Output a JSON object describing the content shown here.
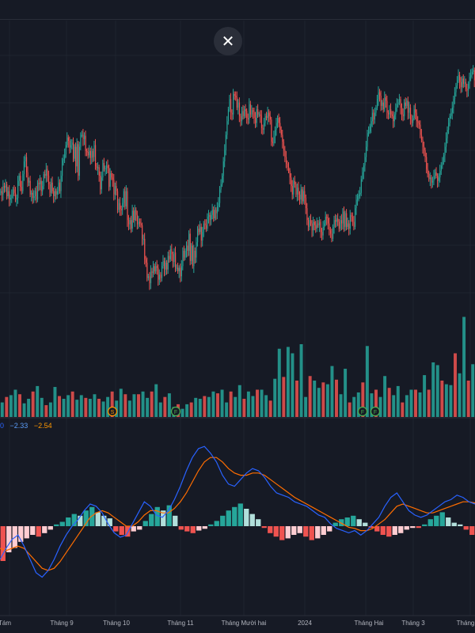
{
  "close_label": "✕",
  "macd_legend": {
    "hist": "0",
    "macd": "−2.33",
    "signal": "−2.54"
  },
  "colors": {
    "up": "#26a69a",
    "down": "#ef5350",
    "up_light": "#b2dfdb",
    "down_light": "#ffcdd2",
    "macd": "#2962ff",
    "signal": "#ff6d00",
    "grid": "#1f2430",
    "axis_text": "#b2b5be"
  },
  "chart_data": {
    "type": "candlestick",
    "x_tick_labels": [
      "Tám",
      "Tháng 9",
      "Tháng 10",
      "Tháng 11",
      "Tháng Mười hai",
      "2024",
      "Tháng Hai",
      "Tháng 3",
      "Tháng"
    ],
    "events": [
      {
        "label": "S",
        "type": "split"
      },
      {
        "label": "F",
        "type": "financial"
      },
      {
        "label": "F",
        "type": "financial"
      },
      {
        "label": "F",
        "type": "financial"
      }
    ],
    "price_closes": [
      300,
      296,
      306,
      304,
      308,
      294,
      300,
      290,
      292,
      296,
      302,
      298,
      290,
      292,
      312,
      318,
      305,
      300,
      320,
      335,
      340,
      322,
      310,
      312,
      296,
      298,
      292,
      294,
      300,
      290,
      310,
      308,
      312,
      300,
      306,
      320,
      318,
      326,
      318,
      308,
      298,
      310,
      300,
      294,
      300,
      296,
      300,
      310,
      300,
      318,
      336,
      338,
      343,
      354,
      363,
      359,
      351,
      354,
      357,
      338,
      352,
      329,
      355,
      318,
      352,
      366,
      366,
      361,
      365,
      347,
      346,
      342,
      347,
      339,
      347,
      340,
      354,
      329,
      327,
      328,
      318,
      302,
      316,
      333,
      326,
      327,
      330,
      327,
      305,
      321,
      316,
      313,
      296,
      306,
      300,
      278,
      286,
      279,
      278,
      286,
      300,
      282,
      300,
      266,
      261,
      266,
      256,
      277,
      266,
      278,
      272,
      261,
      264,
      262,
      260,
      244,
      244,
      220,
      216,
      198,
      200,
      192,
      206,
      204,
      212,
      206,
      212,
      210,
      196,
      202,
      198,
      212,
      218,
      208,
      216,
      208,
      224,
      220,
      232,
      226,
      217,
      228,
      210,
      210,
      206,
      210,
      200,
      212,
      230,
      222,
      230,
      236,
      230,
      250,
      218,
      236,
      212,
      230,
      222,
      240,
      256,
      252,
      258,
      242,
      252,
      262,
      260,
      256,
      270,
      272,
      266,
      272,
      278,
      268,
      278,
      274,
      282,
      286,
      302,
      308,
      318,
      335,
      348,
      366,
      382,
      396,
      408,
      392,
      390,
      414,
      412,
      410,
      398,
      404,
      388,
      382,
      394,
      388,
      396,
      394,
      386,
      384,
      402,
      390,
      395,
      393,
      386,
      380,
      396,
      390,
      390,
      388,
      374,
      372,
      380,
      388,
      386,
      392,
      388,
      384,
      358,
      356,
      364,
      372,
      380,
      386,
      380,
      372,
      366,
      358,
      348,
      340,
      332,
      328,
      324,
      316,
      306,
      296,
      312,
      308,
      296,
      304,
      296,
      290,
      302,
      288,
      300,
      292,
      280,
      266,
      258,
      266,
      262,
      254,
      264,
      260,
      256,
      262,
      260,
      264,
      252,
      248,
      258,
      262,
      270,
      268,
      262,
      254,
      250,
      244,
      258,
      266,
      264,
      268,
      264,
      256,
      266,
      262,
      276,
      258,
      274,
      258,
      262,
      256,
      272,
      270,
      264,
      258,
      280,
      290,
      294,
      296,
      298,
      314,
      322,
      330,
      340,
      352,
      368,
      370,
      376,
      382,
      392,
      384,
      392,
      398,
      408,
      416,
      412,
      400,
      404,
      396,
      410,
      406,
      392,
      390,
      396,
      390,
      388,
      382,
      390,
      398,
      402,
      404,
      408,
      398,
      390,
      388,
      404,
      400,
      406,
      392,
      398,
      384,
      380,
      386,
      396,
      392,
      382,
      380,
      378,
      366,
      360,
      352,
      348,
      340,
      326,
      320,
      314,
      316,
      310,
      312,
      318,
      322,
      318,
      312,
      316,
      324,
      330,
      334,
      342,
      352,
      362,
      372,
      380,
      388,
      392,
      398,
      408,
      416,
      424,
      430,
      436,
      428,
      422,
      432,
      426,
      428,
      420,
      418,
      426,
      434,
      436,
      440,
      442,
      430
    ],
    "price_closes_note": "",
    "volume": [
      16,
      22,
      24,
      30,
      25,
      15,
      20,
      28,
      34,
      21,
      13,
      16,
      33,
      23,
      20,
      24,
      28,
      19,
      24,
      21,
      20,
      25,
      20,
      17,
      22,
      28,
      18,
      31,
      25,
      18,
      25,
      25,
      28,
      21,
      28,
      36,
      16,
      22,
      26,
      11,
      14,
      9,
      14,
      16,
      21,
      20,
      23,
      22,
      28,
      26,
      30,
      16,
      28,
      22,
      35,
      20,
      28,
      23,
      30,
      30,
      24,
      18,
      42,
      75,
      44,
      77,
      70,
      40,
      80,
      22,
      45,
      40,
      32,
      38,
      36,
      56,
      41,
      25,
      53,
      16,
      22,
      27,
      38,
      78,
      26,
      30,
      22,
      45,
      32,
      24,
      34,
      16,
      24,
      30,
      30,
      27,
      46,
      30,
      60,
      57,
      40,
      36,
      35,
      70,
      48,
      110,
      40,
      58
    ],
    "macd_hist": [
      -40,
      -30,
      -25,
      -18,
      -14,
      -10,
      -12,
      -8,
      -4,
      2,
      5,
      10,
      14,
      12,
      18,
      22,
      16,
      12,
      9,
      -6,
      -10,
      -12,
      -6,
      -4,
      6,
      14,
      22,
      18,
      24,
      12,
      -4,
      -6,
      -8,
      -5,
      -3,
      2,
      6,
      12,
      18,
      22,
      26,
      20,
      14,
      8,
      -2,
      -8,
      -12,
      -16,
      -14,
      -10,
      -8,
      -12,
      -16,
      -14,
      -10,
      -6,
      4,
      8,
      10,
      12,
      8,
      4,
      -2,
      -6,
      -10,
      -12,
      -10,
      -8,
      -4,
      -2,
      -2,
      2,
      8,
      12,
      16,
      10,
      4,
      2,
      -4,
      -10
    ],
    "macd_line": [
      -30,
      -20,
      -12,
      -8,
      -18,
      -30,
      -42,
      -46,
      -40,
      -30,
      -18,
      -8,
      0,
      6,
      14,
      20,
      18,
      12,
      2,
      -6,
      -10,
      -8,
      2,
      12,
      22,
      18,
      10,
      8,
      14,
      24,
      36,
      50,
      62,
      70,
      72,
      66,
      58,
      46,
      38,
      36,
      42,
      48,
      52,
      50,
      44,
      36,
      30,
      28,
      26,
      22,
      20,
      18,
      14,
      10,
      8,
      2,
      -2,
      -4,
      -6,
      -4,
      -8,
      -4,
      2,
      8,
      18,
      26,
      30,
      22,
      14,
      10,
      8,
      10,
      14,
      18,
      22,
      24,
      28,
      26,
      22,
      20
    ],
    "signal_line": [
      -20,
      -22,
      -20,
      -18,
      -20,
      -26,
      -32,
      -38,
      -40,
      -38,
      -32,
      -24,
      -16,
      -8,
      0,
      8,
      12,
      14,
      12,
      8,
      4,
      0,
      0,
      4,
      10,
      14,
      14,
      12,
      12,
      16,
      22,
      30,
      40,
      50,
      58,
      62,
      62,
      58,
      52,
      48,
      46,
      46,
      48,
      48,
      46,
      42,
      38,
      34,
      30,
      26,
      23,
      20,
      17,
      14,
      11,
      8,
      5,
      2,
      -1,
      -2,
      -4,
      -4,
      -2,
      2,
      6,
      12,
      18,
      20,
      18,
      16,
      14,
      12,
      12,
      14,
      16,
      18,
      20,
      22,
      22,
      21
    ]
  }
}
